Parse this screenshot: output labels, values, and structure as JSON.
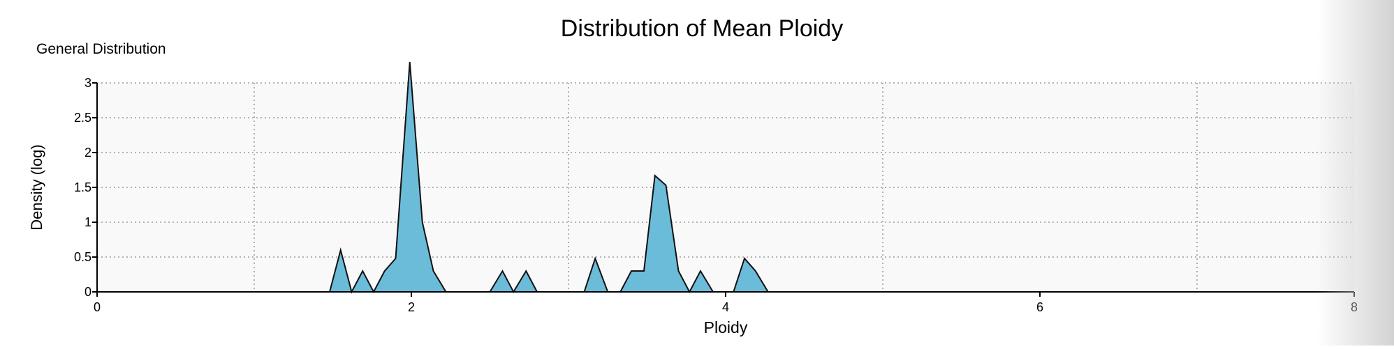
{
  "chart_data": {
    "type": "area",
    "title": "Distribution of Mean Ploidy",
    "subtitle": "General Distribution",
    "xlabel": "Ploidy",
    "ylabel": "Density (log)",
    "xlim": [
      0,
      8
    ],
    "ylim": [
      0,
      3
    ],
    "x_ticks": [
      0,
      2,
      4,
      6,
      8
    ],
    "y_ticks": [
      0,
      0.5,
      1,
      1.5,
      2,
      2.5,
      3
    ],
    "x_grid": [
      1,
      2,
      3,
      5,
      7
    ],
    "grid": true,
    "fill_color": "#6bbcd9",
    "stroke_color": "#111111",
    "plot_background": "#f9f9f9",
    "series": [
      {
        "x": [
          1.48,
          1.55,
          1.62,
          1.69,
          1.76,
          1.83,
          1.9,
          1.99,
          2.07,
          2.14,
          2.22,
          2.5,
          2.58,
          2.65,
          2.73,
          2.8,
          3.1,
          3.17,
          3.25,
          3.33,
          3.4,
          3.48,
          3.55,
          3.62,
          3.7,
          3.77,
          3.84,
          3.92,
          4.05,
          4.12,
          4.19,
          4.27
        ],
        "y": [
          0,
          0.6,
          0,
          0.3,
          0,
          0.3,
          0.48,
          3.3,
          1.0,
          0.3,
          0,
          0,
          0.3,
          0,
          0.3,
          0,
          0,
          0.48,
          0,
          0,
          0.3,
          0.3,
          1.67,
          1.53,
          0.3,
          0,
          0.3,
          0,
          0,
          0.48,
          0.3,
          0
        ]
      }
    ]
  }
}
